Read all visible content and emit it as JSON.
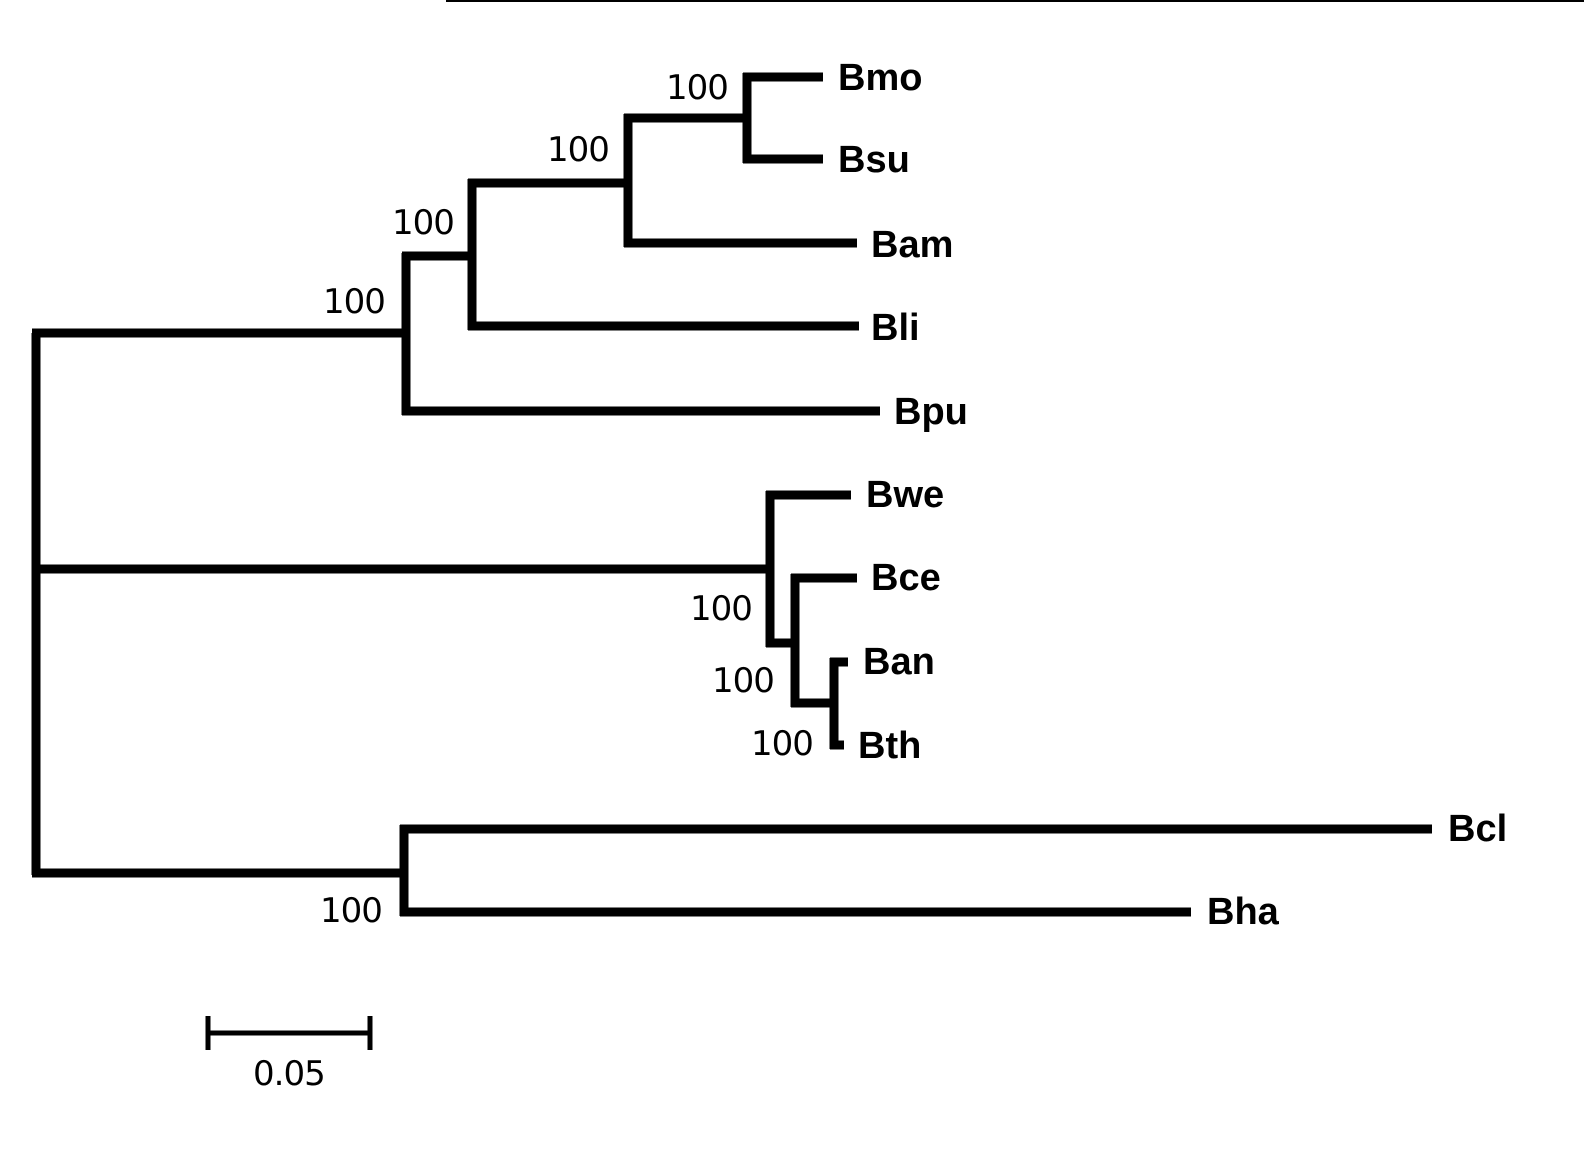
{
  "tree": {
    "taxa": [
      {
        "id": "bmo",
        "label": "Bmo"
      },
      {
        "id": "bsu",
        "label": "Bsu"
      },
      {
        "id": "bam",
        "label": "Bam"
      },
      {
        "id": "bli",
        "label": "Bli"
      },
      {
        "id": "bpu",
        "label": "Bpu"
      },
      {
        "id": "bwe",
        "label": "Bwe"
      },
      {
        "id": "bce",
        "label": "Bce"
      },
      {
        "id": "ban",
        "label": "Ban"
      },
      {
        "id": "bth",
        "label": "Bth"
      },
      {
        "id": "bcl",
        "label": "Bcl"
      },
      {
        "id": "bha",
        "label": "Bha"
      }
    ],
    "support": {
      "bmo_bsu": "100",
      "bmo_bam": "100",
      "bmo_bli": "100",
      "subtilis_group": "100",
      "cereus_group": "100",
      "bce_ban_bth": "100",
      "ban_bth": "100",
      "bcl_bha": "100"
    }
  },
  "scale_bar": {
    "label": "0.05",
    "value": 0.05
  }
}
